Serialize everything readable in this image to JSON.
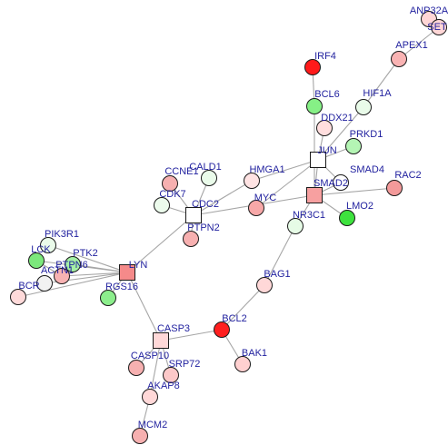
{
  "nodes": [
    {
      "id": "ANP32A",
      "label": "ANP32A",
      "shape": "circle",
      "color": "#ffd6d6"
    },
    {
      "id": "SET",
      "label": "SET",
      "shape": "circle",
      "color": "#ffd6d6"
    },
    {
      "id": "IRF4",
      "label": "IRF4",
      "shape": "circle",
      "color": "#ff1a1a"
    },
    {
      "id": "APEX1",
      "label": "APEX1",
      "shape": "circle",
      "color": "#f9b3b3"
    },
    {
      "id": "HIF1A",
      "label": "HIF1A",
      "shape": "circle",
      "color": "#e9fbe9"
    },
    {
      "id": "BCL6",
      "label": "BCL6",
      "shape": "circle",
      "color": "#86f086"
    },
    {
      "id": "DDX21",
      "label": "DDX21",
      "shape": "circle",
      "color": "#ffdede"
    },
    {
      "id": "PRKD1",
      "label": "PRKD1",
      "shape": "circle",
      "color": "#b4f5b4"
    },
    {
      "id": "JUN",
      "label": "JUN",
      "shape": "square",
      "color": "#ffffff"
    },
    {
      "id": "SMAD4",
      "label": "SMAD4",
      "shape": "circle",
      "color": "#ffffff"
    },
    {
      "id": "RAC2",
      "label": "RAC2",
      "shape": "circle",
      "color": "#f39a9a"
    },
    {
      "id": "SMAD2",
      "label": "SMAD2",
      "shape": "square",
      "color": "#f7a0a0"
    },
    {
      "id": "LMO2",
      "label": "LMO2",
      "shape": "circle",
      "color": "#3ee23e"
    },
    {
      "id": "HMGA1",
      "label": "HMGA1",
      "shape": "circle",
      "color": "#ffe3e3"
    },
    {
      "id": "MYC",
      "label": "MYC",
      "shape": "circle",
      "color": "#f7a8a8"
    },
    {
      "id": "NR3C1",
      "label": "NR3C1",
      "shape": "circle",
      "color": "#e6fbe6"
    },
    {
      "id": "CALD1",
      "label": "CALD1",
      "shape": "circle",
      "color": "#eafbea"
    },
    {
      "id": "CCNE1",
      "label": "CCNE1",
      "shape": "circle",
      "color": "#f6b0b0"
    },
    {
      "id": "CDK7",
      "label": "CDK7",
      "shape": "circle",
      "color": "#ecfbec"
    },
    {
      "id": "CDC2",
      "label": "CDC2",
      "shape": "square",
      "color": "#ffffff"
    },
    {
      "id": "PTPN2",
      "label": "PTPN2",
      "shape": "circle",
      "color": "#f7b0b0"
    },
    {
      "id": "PIK3R1",
      "label": "PIK3R1",
      "shape": "circle",
      "color": "#eafbea"
    },
    {
      "id": "LCK",
      "label": "LCK",
      "shape": "circle",
      "color": "#7ce87c"
    },
    {
      "id": "PTK2",
      "label": "PTK2",
      "shape": "circle",
      "color": "#a5f0a5"
    },
    {
      "id": "PTPN6",
      "label": "PTPN6",
      "shape": "circle",
      "color": "#f7b2b2"
    },
    {
      "id": "ACTN1",
      "label": "ACTN1",
      "shape": "circle",
      "color": "#f2f2f2"
    },
    {
      "id": "BCR",
      "label": "BCR",
      "shape": "circle",
      "color": "#ffdada"
    },
    {
      "id": "LYN",
      "label": "LYN",
      "shape": "square",
      "color": "#f58a8a"
    },
    {
      "id": "RGS16",
      "label": "RGS16",
      "shape": "circle",
      "color": "#8cee8c"
    },
    {
      "id": "BAG1",
      "label": "BAG1",
      "shape": "circle",
      "color": "#ffd8d8"
    },
    {
      "id": "CASP3",
      "label": "CASP3",
      "shape": "square",
      "color": "#ffd8d8"
    },
    {
      "id": "BCL2",
      "label": "BCL2",
      "shape": "circle",
      "color": "#ff1f1f"
    },
    {
      "id": "BAK1",
      "label": "BAK1",
      "shape": "circle",
      "color": "#ffd0d0"
    },
    {
      "id": "CASP10",
      "label": "CASP10",
      "shape": "circle",
      "color": "#f6b0b0"
    },
    {
      "id": "SRP72",
      "label": "SRP72",
      "shape": "circle",
      "color": "#fcc8c8"
    },
    {
      "id": "AKAP8",
      "label": "AKAP8",
      "shape": "circle",
      "color": "#ffd8d8"
    },
    {
      "id": "MCM2",
      "label": "MCM2",
      "shape": "circle",
      "color": "#f6b0b0"
    }
  ],
  "edges": [
    [
      "ANP32A",
      "SET"
    ],
    [
      "APEX1",
      "SET"
    ],
    [
      "APEX1",
      "HIF1A"
    ],
    [
      "HIF1A",
      "JUN"
    ],
    [
      "IRF4",
      "BCL6"
    ],
    [
      "BCL6",
      "SMAD2"
    ],
    [
      "DDX21",
      "JUN"
    ],
    [
      "PRKD1",
      "JUN"
    ],
    [
      "JUN",
      "SMAD4"
    ],
    [
      "JUN",
      "HMGA1"
    ],
    [
      "JUN",
      "SMAD2"
    ],
    [
      "JUN",
      "MYC"
    ],
    [
      "SMAD4",
      "SMAD2"
    ],
    [
      "SMAD2",
      "RAC2"
    ],
    [
      "SMAD2",
      "LMO2"
    ],
    [
      "SMAD2",
      "NR3C1"
    ],
    [
      "SMAD2",
      "CDC2"
    ],
    [
      "HMGA1",
      "CDC2"
    ],
    [
      "CALD1",
      "CDC2"
    ],
    [
      "CCNE1",
      "CDC2"
    ],
    [
      "CDK7",
      "CDC2"
    ],
    [
      "CDC2",
      "PTPN2"
    ],
    [
      "CDC2",
      "LYN"
    ],
    [
      "NR3C1",
      "BAG1"
    ],
    [
      "BAG1",
      "BCL2"
    ],
    [
      "BCL2",
      "BAK1"
    ],
    [
      "BCL2",
      "CASP3"
    ],
    [
      "PIK3R1",
      "LYN"
    ],
    [
      "LCK",
      "LYN"
    ],
    [
      "PTK2",
      "LYN"
    ],
    [
      "PTPN6",
      "LYN"
    ],
    [
      "ACTN1",
      "LYN"
    ],
    [
      "BCR",
      "LYN"
    ],
    [
      "RGS16",
      "LYN"
    ],
    [
      "LYN",
      "CASP3"
    ],
    [
      "LCK",
      "PTPN6"
    ],
    [
      "CASP3",
      "CASP10"
    ],
    [
      "CASP3",
      "SRP72"
    ],
    [
      "CASP3",
      "AKAP8"
    ],
    [
      "AKAP8",
      "MCM2"
    ]
  ]
}
